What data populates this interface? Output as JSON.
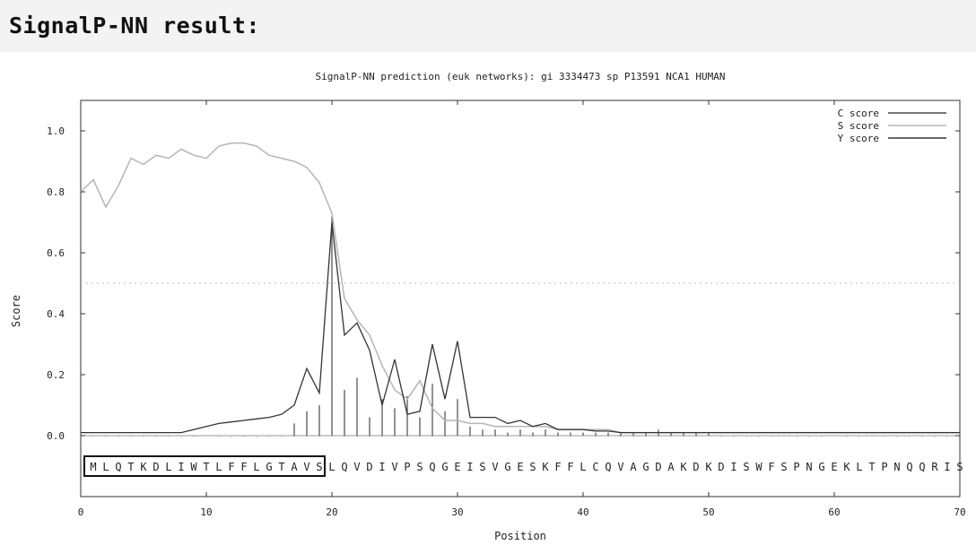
{
  "page": {
    "title": "SignalP-NN result:"
  },
  "chart_data": {
    "type": "line",
    "title": "SignalP-NN prediction (euk networks): gi 3334473 sp P13591 NCA1 HUMAN",
    "xlabel": "Position",
    "ylabel": "Score",
    "xlim": [
      0,
      70
    ],
    "ylim": [
      -0.2,
      1.1
    ],
    "xticks": [
      0,
      10,
      20,
      30,
      40,
      50,
      60,
      70
    ],
    "yticks": [
      0.0,
      0.2,
      0.4,
      0.6,
      0.8,
      1.0
    ],
    "ytick_labels": [
      "0.0",
      "0.2",
      "0.4",
      "0.6",
      "0.8",
      "1.0"
    ],
    "threshold": 0.5,
    "legend_position": "top-right",
    "sequence": "MLQTKDLIWTLFFLGTAVSLQVDIVPSQGEISVGESKFFLCQVAGDAKDKDISWFSPNGEKLTPNQQRIS",
    "boxed_range": [
      1,
      19
    ],
    "series": [
      {
        "name": "C score",
        "color": "#4a4a4a",
        "style": "bars",
        "x": [
          17,
          18,
          19,
          20,
          21,
          22,
          23,
          24,
          25,
          26,
          27,
          28,
          29,
          30,
          31,
          32,
          33,
          34,
          35,
          36,
          37,
          38,
          39,
          40,
          41,
          42,
          43,
          44,
          45,
          46,
          47,
          48,
          49,
          50
        ],
        "values": [
          0.04,
          0.08,
          0.1,
          0.72,
          0.15,
          0.19,
          0.06,
          0.12,
          0.09,
          0.13,
          0.06,
          0.17,
          0.08,
          0.12,
          0.03,
          0.02,
          0.02,
          0.01,
          0.02,
          0.01,
          0.02,
          0.01,
          0.01,
          0.01,
          0.01,
          0.01,
          0.01,
          0.01,
          0.01,
          0.02,
          0.01,
          0.01,
          0.01,
          0.01
        ]
      },
      {
        "name": "S score",
        "color": "#b5b5b5",
        "style": "line",
        "x": [
          0,
          1,
          2,
          3,
          4,
          5,
          6,
          7,
          8,
          9,
          10,
          11,
          12,
          13,
          14,
          15,
          16,
          17,
          18,
          19,
          20,
          21,
          22,
          23,
          24,
          25,
          26,
          27,
          28,
          29,
          30,
          31,
          32,
          33,
          34,
          35,
          36,
          37,
          38,
          39,
          40,
          41,
          42,
          43,
          44,
          45,
          46,
          47,
          48,
          49,
          50,
          51,
          52,
          53,
          54,
          55,
          56,
          57,
          58,
          59,
          60,
          61,
          62,
          63,
          64,
          65,
          66,
          67,
          68,
          69,
          70
        ],
        "values": [
          0.8,
          0.84,
          0.75,
          0.82,
          0.91,
          0.89,
          0.92,
          0.91,
          0.94,
          0.92,
          0.91,
          0.95,
          0.96,
          0.96,
          0.95,
          0.92,
          0.91,
          0.9,
          0.88,
          0.83,
          0.73,
          0.45,
          0.38,
          0.33,
          0.23,
          0.15,
          0.12,
          0.18,
          0.09,
          0.05,
          0.05,
          0.04,
          0.04,
          0.03,
          0.03,
          0.03,
          0.03,
          0.03,
          0.02,
          0.02,
          0.02,
          0.02,
          0.02,
          0.01,
          0.01,
          0.01,
          0.01,
          0.01,
          0.01,
          0.01,
          0.01,
          0.01,
          0.01,
          0.01,
          0.01,
          0.01,
          0.01,
          0.01,
          0.01,
          0.01,
          0.01,
          0.01,
          0.01,
          0.01,
          0.01,
          0.01,
          0.01,
          0.01,
          0.01,
          0.01,
          0.01
        ]
      },
      {
        "name": "Y score",
        "color": "#333333",
        "style": "line",
        "x": [
          0,
          1,
          2,
          3,
          4,
          5,
          6,
          7,
          8,
          9,
          10,
          11,
          12,
          13,
          14,
          15,
          16,
          17,
          18,
          19,
          20,
          21,
          22,
          23,
          24,
          25,
          26,
          27,
          28,
          29,
          30,
          31,
          32,
          33,
          34,
          35,
          36,
          37,
          38,
          39,
          40,
          41,
          42,
          43,
          44,
          45,
          46,
          47,
          48,
          49,
          50,
          51,
          52,
          53,
          54,
          55,
          56,
          57,
          58,
          59,
          60,
          61,
          62,
          63,
          64,
          65,
          66,
          67,
          68,
          69,
          70
        ],
        "values": [
          0.01,
          0.01,
          0.01,
          0.01,
          0.01,
          0.01,
          0.01,
          0.01,
          0.01,
          0.02,
          0.03,
          0.04,
          0.045,
          0.05,
          0.055,
          0.06,
          0.07,
          0.1,
          0.22,
          0.14,
          0.7,
          0.33,
          0.37,
          0.28,
          0.1,
          0.25,
          0.07,
          0.08,
          0.3,
          0.12,
          0.31,
          0.06,
          0.06,
          0.06,
          0.04,
          0.05,
          0.03,
          0.04,
          0.02,
          0.02,
          0.02,
          0.015,
          0.015,
          0.01,
          0.01,
          0.01,
          0.01,
          0.01,
          0.01,
          0.01,
          0.01,
          0.01,
          0.01,
          0.01,
          0.01,
          0.01,
          0.01,
          0.01,
          0.01,
          0.01,
          0.01,
          0.01,
          0.01,
          0.01,
          0.01,
          0.01,
          0.01,
          0.01,
          0.01,
          0.01,
          0.01
        ]
      }
    ]
  }
}
